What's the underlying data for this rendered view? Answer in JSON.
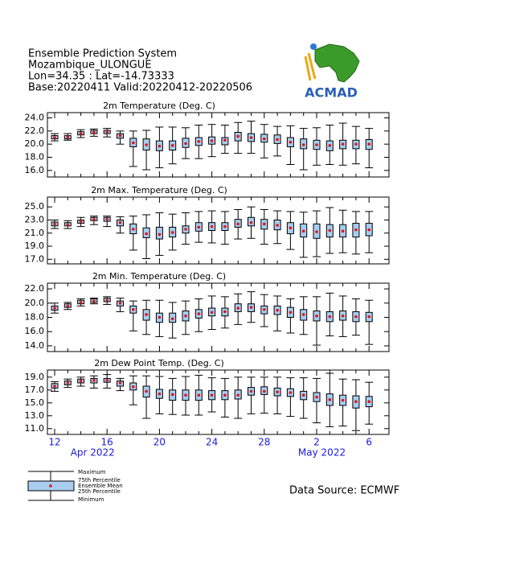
{
  "header": {
    "lines": [
      "Ensemble Prediction System",
      "Mozambique_ULONGUE",
      "Lon=34.35 : Lat=-14.73333",
      "Base:20220411 Valid:20220412-20220506"
    ]
  },
  "logo": {
    "text": "ACMAD"
  },
  "legend": {
    "labels": [
      "Maximum",
      "75th Percentile",
      "Ensemble Mean",
      "25th Percentile",
      "Minimum"
    ]
  },
  "source": "Data Source: ECMWF",
  "chart_data": [
    {
      "type": "box",
      "title": "2m Temperature (Deg. C)",
      "box_color": "#a9cdef",
      "mean_color": "#e0141e",
      "ylim": [
        15,
        24.8
      ],
      "yticks": [
        {
          "value": 16,
          "label": "16.0"
        },
        {
          "value": 18,
          "label": "18.0"
        },
        {
          "value": 20,
          "label": "20.0"
        },
        {
          "value": 22,
          "label": "22.0"
        },
        {
          "value": 24,
          "label": "24.0"
        }
      ],
      "min": [
        20.5,
        20.6,
        21.0,
        21.2,
        21.1,
        20.0,
        16.6,
        16.1,
        16.4,
        17.0,
        17.8,
        17.8,
        18.1,
        18.6,
        18.6,
        18.6,
        17.9,
        18.2,
        16.9,
        16.1,
        16.8,
        16.9,
        16.8,
        17.0,
        16.4
      ],
      "q1": [
        20.8,
        20.8,
        21.4,
        21.6,
        21.6,
        20.9,
        19.6,
        19.1,
        19.0,
        19.1,
        19.5,
        19.8,
        20.0,
        19.9,
        20.5,
        20.4,
        20.3,
        20.1,
        19.6,
        19.3,
        19.2,
        19.0,
        19.3,
        19.3,
        19.2
      ],
      "mean": [
        21.0,
        21.1,
        21.6,
        21.8,
        21.9,
        21.3,
        20.2,
        19.9,
        19.7,
        19.8,
        20.1,
        20.4,
        20.5,
        20.6,
        21.2,
        21.0,
        20.8,
        20.7,
        20.3,
        19.9,
        19.9,
        19.8,
        20.0,
        20.0,
        20.0
      ],
      "q3": [
        21.3,
        21.3,
        21.9,
        22.1,
        22.1,
        21.6,
        20.9,
        20.8,
        20.5,
        20.5,
        20.9,
        21.0,
        21.1,
        21.0,
        21.8,
        21.6,
        21.5,
        21.4,
        21.0,
        20.8,
        20.6,
        20.5,
        20.6,
        20.6,
        20.7
      ],
      "max": [
        21.6,
        21.6,
        22.2,
        22.3,
        22.4,
        22.0,
        22.0,
        22.1,
        22.6,
        22.6,
        22.5,
        22.9,
        23.0,
        22.9,
        23.3,
        23.5,
        23.0,
        22.7,
        22.8,
        22.4,
        22.5,
        22.9,
        23.2,
        22.7,
        22.4
      ]
    },
    {
      "type": "box",
      "title": "2m Max. Temperature (Deg. C)",
      "box_color": "#a9cdef",
      "mean_color": "#e0141e",
      "ylim": [
        16.3,
        26.5
      ],
      "yticks": [
        {
          "value": 17,
          "label": "17.0"
        },
        {
          "value": 19,
          "label": "19.0"
        },
        {
          "value": 21,
          "label": "21.0"
        },
        {
          "value": 23,
          "label": "23.0"
        },
        {
          "value": 25,
          "label": "25.0"
        }
      ],
      "min": [
        21.7,
        21.7,
        22.0,
        22.3,
        22.0,
        21.0,
        18.4,
        17.1,
        17.6,
        18.4,
        19.3,
        19.6,
        19.5,
        19.3,
        20.1,
        20.2,
        19.3,
        19.4,
        18.5,
        17.3,
        17.4,
        17.9,
        18.0,
        17.8,
        18.0
      ],
      "q1": [
        22.1,
        22.1,
        22.5,
        22.9,
        22.8,
        22.1,
        20.9,
        20.3,
        20.1,
        20.4,
        21.0,
        21.3,
        21.4,
        21.4,
        21.9,
        22.1,
        21.6,
        21.5,
        20.9,
        20.4,
        20.2,
        20.4,
        20.4,
        20.4,
        20.6
      ],
      "mean": [
        22.4,
        22.3,
        22.8,
        23.1,
        23.1,
        22.6,
        21.6,
        20.9,
        20.8,
        21.1,
        21.6,
        21.9,
        22.0,
        22.0,
        22.4,
        22.6,
        22.4,
        22.2,
        21.8,
        21.3,
        21.2,
        21.4,
        21.3,
        21.5,
        21.5
      ],
      "q3": [
        22.7,
        22.6,
        23.0,
        23.4,
        23.4,
        23.0,
        22.4,
        21.8,
        21.9,
        21.9,
        22.1,
        22.6,
        22.6,
        22.6,
        23.1,
        23.4,
        23.1,
        23.0,
        22.6,
        22.4,
        22.4,
        22.3,
        22.3,
        22.5,
        22.5
      ],
      "max": [
        23.0,
        22.9,
        23.4,
        23.6,
        23.6,
        23.5,
        23.6,
        23.8,
        24.1,
        23.9,
        24.1,
        24.3,
        24.4,
        24.3,
        24.6,
        25.0,
        24.6,
        24.4,
        24.3,
        24.2,
        24.4,
        24.9,
        24.5,
        24.3,
        24.3
      ]
    },
    {
      "type": "box",
      "title": "2m Min. Temperature (Deg. C)",
      "box_color": "#a9cdef",
      "mean_color": "#e0141e",
      "ylim": [
        13.2,
        22.8
      ],
      "yticks": [
        {
          "value": 14,
          "label": "14.0"
        },
        {
          "value": 16,
          "label": "16.0"
        },
        {
          "value": 18,
          "label": "18.0"
        },
        {
          "value": 20,
          "label": "20.0"
        },
        {
          "value": 22,
          "label": "22.0"
        }
      ],
      "min": [
        18.6,
        19.1,
        19.6,
        19.9,
        19.8,
        18.8,
        16.1,
        15.6,
        15.3,
        15.1,
        15.6,
        16.0,
        16.3,
        16.5,
        17.0,
        17.3,
        16.7,
        16.1,
        15.8,
        15.6,
        14.1,
        15.4,
        15.3,
        15.5,
        14.2
      ],
      "q1": [
        19.0,
        19.4,
        19.9,
        20.1,
        20.2,
        19.6,
        18.6,
        17.6,
        17.3,
        17.3,
        17.5,
        17.9,
        18.2,
        18.2,
        18.8,
        18.8,
        18.5,
        18.4,
        18.0,
        17.6,
        17.5,
        17.4,
        17.6,
        17.4,
        17.4
      ],
      "mean": [
        19.3,
        19.6,
        20.1,
        20.3,
        20.4,
        20.0,
        19.1,
        18.4,
        18.0,
        17.8,
        18.2,
        18.5,
        18.7,
        18.8,
        19.3,
        19.4,
        19.1,
        19.0,
        18.7,
        18.4,
        18.2,
        18.1,
        18.2,
        18.1,
        18.1
      ],
      "q3": [
        19.6,
        19.9,
        20.4,
        20.6,
        20.7,
        20.3,
        19.6,
        19.1,
        18.6,
        18.6,
        18.9,
        19.1,
        19.3,
        19.3,
        19.9,
        19.9,
        19.6,
        19.6,
        19.4,
        19.1,
        18.9,
        18.8,
        18.9,
        18.8,
        18.7
      ],
      "max": [
        20.0,
        20.1,
        20.6,
        20.7,
        20.9,
        20.7,
        20.3,
        20.4,
        20.4,
        20.1,
        20.3,
        20.6,
        21.0,
        20.9,
        21.3,
        21.6,
        21.2,
        21.0,
        20.6,
        20.9,
        20.9,
        21.4,
        21.0,
        20.6,
        20.4
      ]
    },
    {
      "type": "box",
      "title": "2m Dew Point Temp. (Deg. C)",
      "box_color": "#a9cdef",
      "mean_color": "#e0141e",
      "ylim": [
        10.1,
        20.1
      ],
      "yticks": [
        {
          "value": 11,
          "label": "11.0"
        },
        {
          "value": 13,
          "label": "13.0"
        },
        {
          "value": 15,
          "label": "15.0"
        },
        {
          "value": 17,
          "label": "17.0"
        },
        {
          "value": 19,
          "label": "19.0"
        }
      ],
      "categories": [
        "12",
        null,
        null,
        null,
        "16",
        null,
        null,
        null,
        "20",
        null,
        null,
        null,
        "24",
        null,
        null,
        null,
        "28",
        null,
        null,
        null,
        "2",
        null,
        null,
        null,
        "6"
      ],
      "months": [
        "Apr 2022",
        "May 2022"
      ],
      "min": [
        16.8,
        17.4,
        17.6,
        17.3,
        17.3,
        16.9,
        14.7,
        12.6,
        13.3,
        13.2,
        13.1,
        13.1,
        13.6,
        12.8,
        12.6,
        13.3,
        13.4,
        13.3,
        12.9,
        12.6,
        11.9,
        11.3,
        11.4,
        10.7,
        11.7
      ],
      "q1": [
        17.3,
        17.8,
        18.1,
        18.1,
        18.2,
        17.6,
        17.0,
        15.9,
        15.7,
        15.4,
        15.4,
        15.4,
        15.5,
        15.5,
        15.6,
        16.2,
        16.3,
        16.1,
        16.0,
        15.5,
        15.2,
        14.6,
        14.6,
        14.2,
        14.4
      ],
      "mean": [
        17.6,
        18.1,
        18.4,
        18.5,
        18.5,
        18.1,
        17.5,
        16.8,
        16.4,
        16.3,
        16.2,
        16.2,
        16.2,
        16.2,
        16.2,
        16.8,
        16.8,
        16.7,
        16.6,
        16.2,
        15.9,
        15.5,
        15.4,
        15.2,
        15.2
      ],
      "q3": [
        18.0,
        18.4,
        18.7,
        18.8,
        18.8,
        18.4,
        18.1,
        17.6,
        17.1,
        17.0,
        17.0,
        17.0,
        16.9,
        16.9,
        17.0,
        17.4,
        17.5,
        17.3,
        17.2,
        16.8,
        16.6,
        16.4,
        16.2,
        16.1,
        16.0
      ],
      "max": [
        18.3,
        18.7,
        19.0,
        19.2,
        19.4,
        18.8,
        19.2,
        19.2,
        19.1,
        18.8,
        19.1,
        19.3,
        18.9,
        18.8,
        19.0,
        19.0,
        19.0,
        19.0,
        18.9,
        18.9,
        18.8,
        19.6,
        18.7,
        18.6,
        18.2
      ]
    }
  ]
}
